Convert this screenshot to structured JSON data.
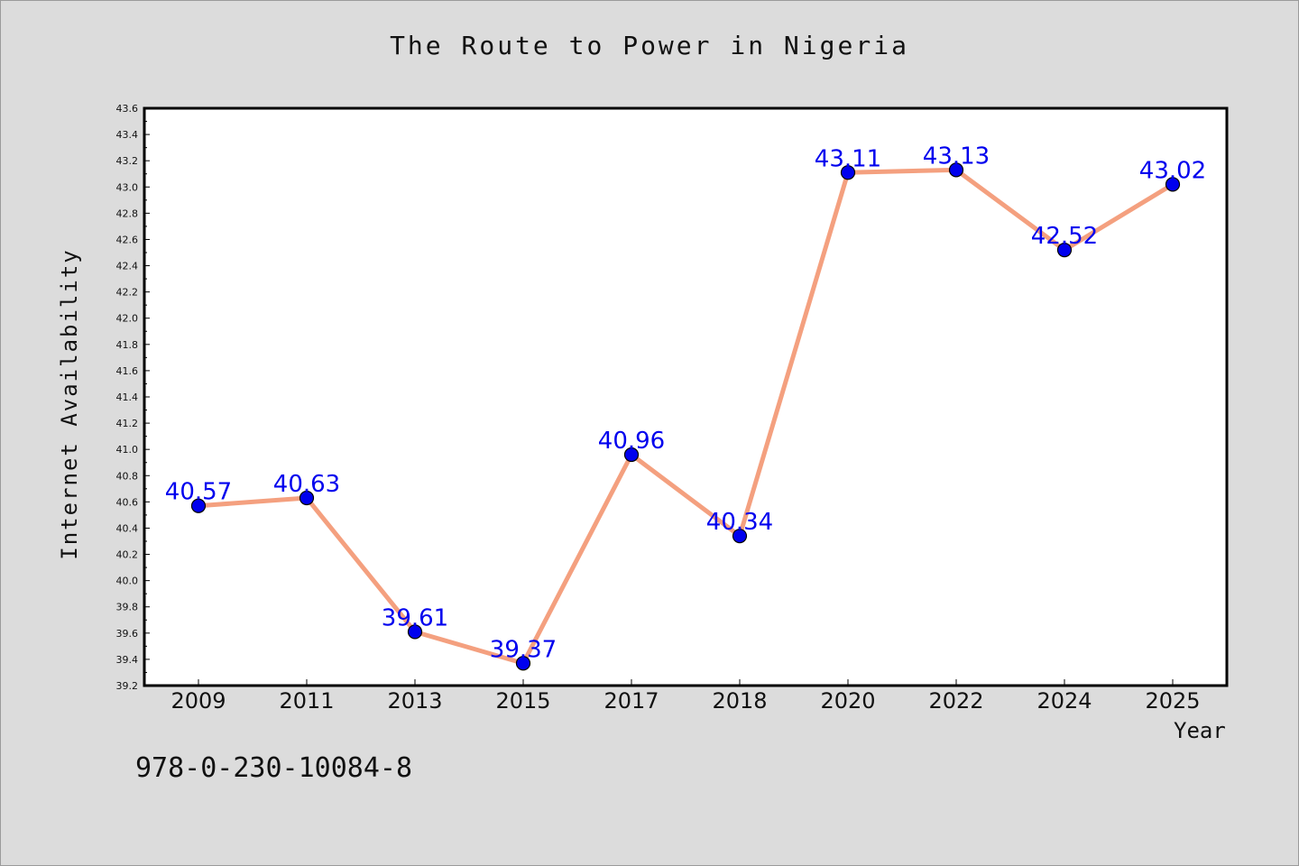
{
  "chart_data": {
    "type": "line",
    "title": "The Route to Power in Nigeria",
    "xlabel": "Year",
    "ylabel": "Internet Availability",
    "categories": [
      "2009",
      "2011",
      "2013",
      "2015",
      "2017",
      "2018",
      "2020",
      "2022",
      "2024",
      "2025"
    ],
    "series": [
      {
        "values": [
          40.57,
          40.63,
          39.61,
          39.37,
          40.96,
          40.34,
          43.11,
          43.13,
          42.52,
          43.02
        ]
      }
    ],
    "data_labels": [
      "40.57",
      "40.63",
      "39.61",
      "39.37",
      "40.96",
      "40.34",
      "43.11",
      "43.13",
      "42.52",
      "43.02"
    ],
    "ylim": [
      39.2,
      43.6
    ],
    "yticks": [
      "39.2",
      "39.4",
      "39.6",
      "39.8",
      "40.0",
      "40.2",
      "40.4",
      "40.6",
      "40.8",
      "41.0",
      "41.2",
      "41.4",
      "41.6",
      "41.8",
      "42.0",
      "42.2",
      "42.4",
      "42.6",
      "42.8",
      "43.0",
      "43.2",
      "43.4",
      "43.6"
    ],
    "grid": false,
    "colors": {
      "line": "#f4a07f",
      "marker": "#0000ee",
      "label": "#0000ee",
      "plot_bg": "#ffffff",
      "figure_bg": "#dcdcdc"
    }
  },
  "footer": {
    "isbn": "978-0-230-10084-8"
  }
}
